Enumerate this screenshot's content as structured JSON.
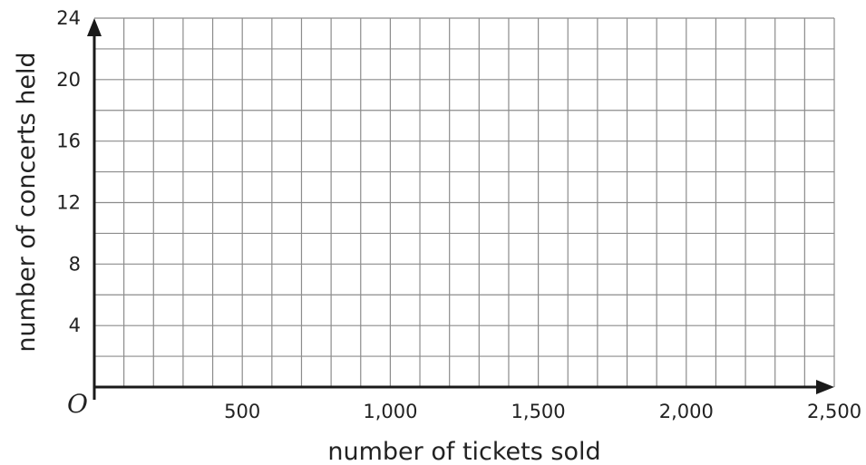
{
  "chart_data": {
    "type": "scatter",
    "title": "",
    "xlabel": "number of tickets sold",
    "ylabel": "number of concerts held",
    "origin_label": "O",
    "xlim": [
      0,
      2500
    ],
    "ylim": [
      0,
      24
    ],
    "x_grid_step": 100,
    "y_grid_step": 2,
    "x_ticks": [
      {
        "value": 500,
        "label": "500"
      },
      {
        "value": 1000,
        "label": "1,000"
      },
      {
        "value": 1500,
        "label": "1,500"
      },
      {
        "value": 2000,
        "label": "2,000"
      },
      {
        "value": 2500,
        "label": "2,500"
      }
    ],
    "y_ticks": [
      {
        "value": 4,
        "label": "4"
      },
      {
        "value": 8,
        "label": "8"
      },
      {
        "value": 12,
        "label": "12"
      },
      {
        "value": 16,
        "label": "16"
      },
      {
        "value": 20,
        "label": "20"
      },
      {
        "value": 24,
        "label": "24"
      }
    ],
    "grid": true,
    "series": [],
    "colors": {
      "grid": "#8c8c8c",
      "axis": "#1a1a1a",
      "text": "#222222"
    }
  }
}
